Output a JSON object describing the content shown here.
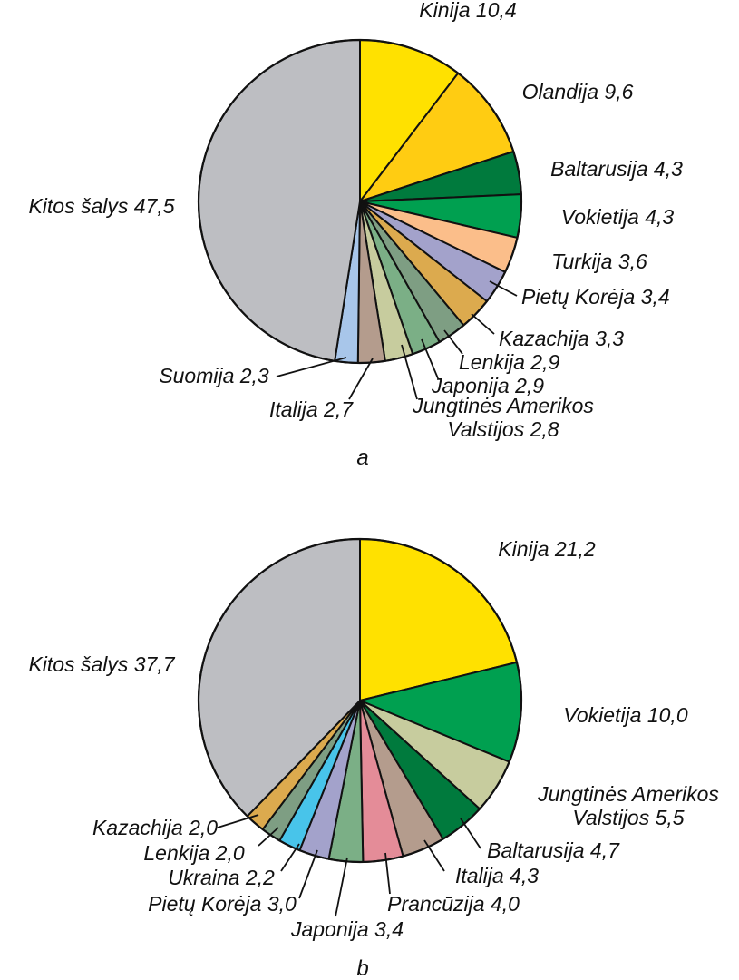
{
  "chart_data": [
    {
      "type": "pie",
      "caption": "a",
      "slices": [
        {
          "label": "Kinija 10,4",
          "value": 10.4,
          "color": "#FFE100"
        },
        {
          "label": "Olandija 9,6",
          "value": 9.6,
          "color": "#FFCC12"
        },
        {
          "label": "Baltarusija 4,3",
          "value": 4.3,
          "color": "#007A3D"
        },
        {
          "label": "Vokietija 4,3",
          "value": 4.3,
          "color": "#00A050"
        },
        {
          "label": "Turkija 3,6",
          "value": 3.6,
          "color": "#FBBE8A"
        },
        {
          "label": "Pietų Korėja 3,4",
          "value": 3.4,
          "color": "#A3A2CB"
        },
        {
          "label": "Kazachija 3,3",
          "value": 3.3,
          "color": "#DCAA4E"
        },
        {
          "label": "Lenkija 2,9",
          "value": 2.9,
          "color": "#7E9E83"
        },
        {
          "label": "Japonija 2,9",
          "value": 2.9,
          "color": "#7BAF86"
        },
        {
          "label": "Jungtinės Amerikos\nValstijos 2,8",
          "value": 2.8,
          "color": "#C7CC9E"
        },
        {
          "label": "Italija 2,7",
          "value": 2.7,
          "color": "#B49C8D"
        },
        {
          "label": "Suomija 2,3",
          "value": 2.3,
          "color": "#A8C6EA"
        },
        {
          "label": "Kitos šalys 47,5",
          "value": 47.5,
          "color": "#BDBEC2"
        }
      ]
    },
    {
      "type": "pie",
      "caption": "b",
      "slices": [
        {
          "label": "Kinija 21,2",
          "value": 21.2,
          "color": "#FFE100"
        },
        {
          "label": "Vokietija 10,0",
          "value": 10.0,
          "color": "#00A050"
        },
        {
          "label": "Jungtinės Amerikos\nValstijos 5,5",
          "value": 5.5,
          "color": "#C7CC9E"
        },
        {
          "label": "Baltarusija 4,7",
          "value": 4.7,
          "color": "#007A3D"
        },
        {
          "label": "Italija 4,3",
          "value": 4.3,
          "color": "#B49C8D"
        },
        {
          "label": "Prancūzija 4,0",
          "value": 4.0,
          "color": "#E48C98"
        },
        {
          "label": "Japonija 3,4",
          "value": 3.4,
          "color": "#7BAF86"
        },
        {
          "label": "Pietų Korėja 3,0",
          "value": 3.0,
          "color": "#A3A2CB"
        },
        {
          "label": "Ukraina 2,2",
          "value": 2.2,
          "color": "#48C4EA"
        },
        {
          "label": "Lenkija 2,0",
          "value": 2.0,
          "color": "#7E9E83"
        },
        {
          "label": "Kazachija 2,0",
          "value": 2.0,
          "color": "#DCAA4E"
        },
        {
          "label": "Kitos šalys 37,7",
          "value": 37.7,
          "color": "#BDBEC2"
        }
      ]
    }
  ]
}
